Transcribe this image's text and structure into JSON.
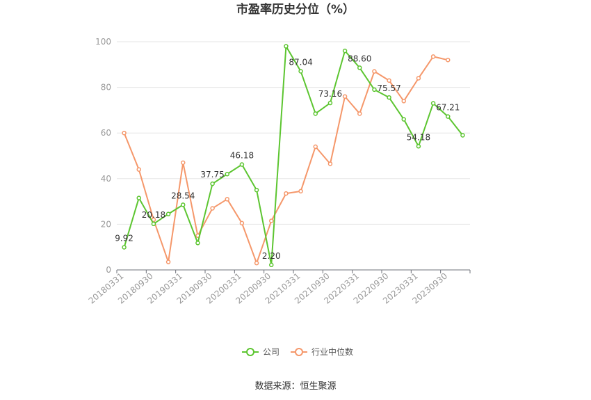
{
  "chart_data": {
    "type": "line",
    "title": "市盈率历史分位（%）",
    "xlabel": "",
    "ylabel": "",
    "ylim": [
      0,
      100
    ],
    "yticks": [
      0,
      20,
      40,
      60,
      80,
      100
    ],
    "x": [
      "20180331",
      "20180630",
      "20180930",
      "20181231",
      "20190331",
      "20190630",
      "20190930",
      "20191231",
      "20200331",
      "20200630",
      "20200930",
      "20201231",
      "20210331",
      "20210630",
      "20210930",
      "20211231",
      "20220331",
      "20220630",
      "20220930",
      "20221231",
      "20230331",
      "20230630",
      "20230930",
      "20231231"
    ],
    "xtick_labels": [
      "20180331",
      "20180930",
      "20190331",
      "20190930",
      "20200331",
      "20200930",
      "20210331",
      "20210930",
      "20220331",
      "20220930",
      "20230331",
      "20230930"
    ],
    "grid": true,
    "legend_position": "bottom",
    "series": [
      {
        "name": "公司",
        "color": "#5cc530",
        "values": [
          9.92,
          31.5,
          20.18,
          24.5,
          28.54,
          11.8,
          37.75,
          42.0,
          46.18,
          35.0,
          2.2,
          98.0,
          87.04,
          68.5,
          73.16,
          96.0,
          88.6,
          79.0,
          75.57,
          66.0,
          54.18,
          73.0,
          67.21,
          59.0
        ],
        "labels": [
          {
            "index": 0,
            "text": "9.92"
          },
          {
            "index": 2,
            "text": "20.18"
          },
          {
            "index": 4,
            "text": "28.54"
          },
          {
            "index": 6,
            "text": "37.75"
          },
          {
            "index": 8,
            "text": "46.18"
          },
          {
            "index": 10,
            "text": "2.20"
          },
          {
            "index": 12,
            "text": "87.04"
          },
          {
            "index": 14,
            "text": "73.16"
          },
          {
            "index": 16,
            "text": "88.60"
          },
          {
            "index": 18,
            "text": "75.57"
          },
          {
            "index": 20,
            "text": "54.18"
          },
          {
            "index": 22,
            "text": "67.21"
          }
        ]
      },
      {
        "name": "行业中位数",
        "color": "#f5976a",
        "values": [
          60.0,
          44.0,
          22.0,
          3.5,
          47.0,
          15.0,
          27.0,
          31.0,
          20.5,
          3.0,
          21.5,
          33.5,
          34.5,
          54.0,
          46.5,
          76.0,
          68.5,
          87.0,
          83.0,
          74.0,
          84.0,
          93.5,
          92.0,
          null
        ]
      }
    ]
  },
  "footer": {
    "source": "数据来源：恒生聚源"
  }
}
